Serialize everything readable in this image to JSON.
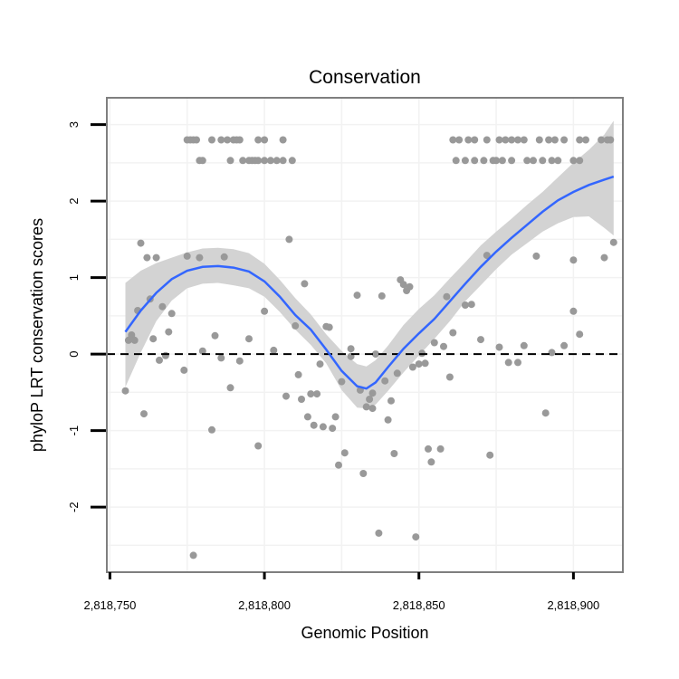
{
  "chart_data": {
    "type": "scatter",
    "title": "Conservation",
    "xlabel": "Genomic Position",
    "ylabel": "phyloP LRT conservation scores",
    "xlim": [
      2818749,
      2818916
    ],
    "ylim": [
      -2.85,
      3.35
    ],
    "x_ticks": [
      {
        "value": 2818750,
        "label": "2,818,750"
      },
      {
        "value": 2818800,
        "label": "2,818,800"
      },
      {
        "value": 2818850,
        "label": "2,818,850"
      },
      {
        "value": 2818900,
        "label": "2,818,900"
      }
    ],
    "y_ticks": [
      {
        "value": -2,
        "label": "-2"
      },
      {
        "value": -1,
        "label": "-1"
      },
      {
        "value": 0,
        "label": "0"
      },
      {
        "value": 1,
        "label": "1"
      },
      {
        "value": 2,
        "label": "2"
      },
      {
        "value": 3,
        "label": "3"
      }
    ],
    "reference_line": {
      "y": 0,
      "style": "dashed"
    },
    "series": [
      {
        "name": "scores",
        "kind": "points",
        "color": "#999999",
        "points": [
          [
            2818775,
            2.8
          ],
          [
            2818776,
            2.8
          ],
          [
            2818777,
            2.8
          ],
          [
            2818778,
            2.8
          ],
          [
            2818783,
            2.8
          ],
          [
            2818786,
            2.8
          ],
          [
            2818788,
            2.8
          ],
          [
            2818790,
            2.8
          ],
          [
            2818791,
            2.8
          ],
          [
            2818792,
            2.8
          ],
          [
            2818798,
            2.8
          ],
          [
            2818800,
            2.8
          ],
          [
            2818806,
            2.8
          ],
          [
            2818875,
            2.53
          ],
          [
            2818779,
            2.53
          ],
          [
            2818780,
            2.53
          ],
          [
            2818789,
            2.53
          ],
          [
            2818793,
            2.53
          ],
          [
            2818795,
            2.53
          ],
          [
            2818796,
            2.53
          ],
          [
            2818797,
            2.53
          ],
          [
            2818798,
            2.53
          ],
          [
            2818800,
            2.53
          ],
          [
            2818802,
            2.53
          ],
          [
            2818804,
            2.53
          ],
          [
            2818806,
            2.53
          ],
          [
            2818809,
            2.53
          ],
          [
            2818861,
            2.8
          ],
          [
            2818863,
            2.8
          ],
          [
            2818866,
            2.8
          ],
          [
            2818868,
            2.8
          ],
          [
            2818872,
            2.8
          ],
          [
            2818876,
            2.8
          ],
          [
            2818878,
            2.8
          ],
          [
            2818880,
            2.8
          ],
          [
            2818882,
            2.8
          ],
          [
            2818884,
            2.8
          ],
          [
            2818889,
            2.8
          ],
          [
            2818892,
            2.8
          ],
          [
            2818894,
            2.8
          ],
          [
            2818897,
            2.8
          ],
          [
            2818902,
            2.8
          ],
          [
            2818904,
            2.8
          ],
          [
            2818909,
            2.8
          ],
          [
            2818911,
            2.8
          ],
          [
            2818912,
            2.8
          ],
          [
            2818862,
            2.53
          ],
          [
            2818865,
            2.53
          ],
          [
            2818868,
            2.53
          ],
          [
            2818871,
            2.53
          ],
          [
            2818874,
            2.53
          ],
          [
            2818877,
            2.53
          ],
          [
            2818880,
            2.53
          ],
          [
            2818885,
            2.53
          ],
          [
            2818887,
            2.53
          ],
          [
            2818890,
            2.53
          ],
          [
            2818893,
            2.53
          ],
          [
            2818895,
            2.53
          ],
          [
            2818900,
            2.53
          ],
          [
            2818902,
            2.53
          ],
          [
            2818755,
            -0.48
          ],
          [
            2818756,
            0.18
          ],
          [
            2818757,
            0.22
          ],
          [
            2818757,
            0.25
          ],
          [
            2818758,
            0.18
          ],
          [
            2818759,
            0.57
          ],
          [
            2818760,
            1.45
          ],
          [
            2818761,
            -0.78
          ],
          [
            2818762,
            1.26
          ],
          [
            2818763,
            0.72
          ],
          [
            2818764,
            0.2
          ],
          [
            2818765,
            1.26
          ],
          [
            2818766,
            -0.08
          ],
          [
            2818767,
            0.62
          ],
          [
            2818768,
            -0.02
          ],
          [
            2818769,
            0.29
          ],
          [
            2818770,
            0.53
          ],
          [
            2818774,
            -0.21
          ],
          [
            2818775,
            1.28
          ],
          [
            2818777,
            -2.63
          ],
          [
            2818779,
            1.26
          ],
          [
            2818780,
            0.04
          ],
          [
            2818783,
            -0.99
          ],
          [
            2818784,
            0.24
          ],
          [
            2818786,
            -0.05
          ],
          [
            2818787,
            1.27
          ],
          [
            2818789,
            -0.44
          ],
          [
            2818792,
            -0.09
          ],
          [
            2818795,
            0.2
          ],
          [
            2818798,
            -1.2
          ],
          [
            2818800,
            0.56
          ],
          [
            2818803,
            0.05
          ],
          [
            2818807,
            -0.55
          ],
          [
            2818808,
            1.5
          ],
          [
            2818810,
            0.37
          ],
          [
            2818811,
            -0.27
          ],
          [
            2818812,
            -0.59
          ],
          [
            2818813,
            0.92
          ],
          [
            2818814,
            -0.82
          ],
          [
            2818815,
            -0.52
          ],
          [
            2818816,
            -0.93
          ],
          [
            2818817,
            -0.52
          ],
          [
            2818818,
            -0.13
          ],
          [
            2818819,
            -0.95
          ],
          [
            2818820,
            0.36
          ],
          [
            2818821,
            0.35
          ],
          [
            2818822,
            -0.97
          ],
          [
            2818823,
            -0.82
          ],
          [
            2818824,
            -1.45
          ],
          [
            2818825,
            -0.36
          ],
          [
            2818826,
            -1.29
          ],
          [
            2818828,
            -0.03
          ],
          [
            2818828,
            0.07
          ],
          [
            2818830,
            0.77
          ],
          [
            2818831,
            -0.47
          ],
          [
            2818832,
            -1.56
          ],
          [
            2818833,
            -0.69
          ],
          [
            2818834,
            -0.59
          ],
          [
            2818835,
            -0.51
          ],
          [
            2818835,
            -0.71
          ],
          [
            2818836,
            0.0
          ],
          [
            2818837,
            -2.34
          ],
          [
            2818838,
            0.76
          ],
          [
            2818839,
            -0.35
          ],
          [
            2818840,
            -0.86
          ],
          [
            2818841,
            -0.61
          ],
          [
            2818842,
            -1.3
          ],
          [
            2818843,
            -0.25
          ],
          [
            2818844,
            0.97
          ],
          [
            2818845,
            0.91
          ],
          [
            2818846,
            0.83
          ],
          [
            2818847,
            0.88
          ],
          [
            2818848,
            -0.17
          ],
          [
            2818849,
            -2.39
          ],
          [
            2818850,
            -0.13
          ],
          [
            2818851,
            0.01
          ],
          [
            2818852,
            -0.12
          ],
          [
            2818853,
            -1.24
          ],
          [
            2818854,
            -1.41
          ],
          [
            2818855,
            0.15
          ],
          [
            2818857,
            -1.24
          ],
          [
            2818858,
            0.1
          ],
          [
            2818859,
            0.75
          ],
          [
            2818860,
            -0.3
          ],
          [
            2818861,
            0.28
          ],
          [
            2818865,
            0.64
          ],
          [
            2818867,
            0.65
          ],
          [
            2818870,
            0.19
          ],
          [
            2818872,
            1.29
          ],
          [
            2818873,
            -1.32
          ],
          [
            2818876,
            0.09
          ],
          [
            2818879,
            -0.11
          ],
          [
            2818882,
            -0.11
          ],
          [
            2818884,
            0.11
          ],
          [
            2818888,
            1.28
          ],
          [
            2818891,
            -0.77
          ],
          [
            2818893,
            0.02
          ],
          [
            2818897,
            0.11
          ],
          [
            2818900,
            0.56
          ],
          [
            2818900,
            1.23
          ],
          [
            2818902,
            0.26
          ],
          [
            2818910,
            1.26
          ],
          [
            2818913,
            1.46
          ]
        ]
      },
      {
        "name": "smooth fit",
        "kind": "line",
        "color": "#3366ff",
        "x": [
          2818755,
          2818760,
          2818765,
          2818770,
          2818775,
          2818780,
          2818785,
          2818790,
          2818795,
          2818800,
          2818805,
          2818810,
          2818815,
          2818820,
          2818825,
          2818830,
          2818833,
          2818836,
          2818840,
          2818845,
          2818850,
          2818855,
          2818860,
          2818865,
          2818870,
          2818875,
          2818880,
          2818885,
          2818890,
          2818895,
          2818900,
          2818905,
          2818910,
          2818913
        ],
        "y": [
          0.29,
          0.57,
          0.8,
          0.98,
          1.09,
          1.14,
          1.15,
          1.13,
          1.08,
          0.95,
          0.75,
          0.51,
          0.32,
          0.06,
          -0.22,
          -0.42,
          -0.45,
          -0.37,
          -0.17,
          0.07,
          0.27,
          0.46,
          0.69,
          0.92,
          1.14,
          1.34,
          1.52,
          1.69,
          1.86,
          2.01,
          2.12,
          2.21,
          2.28,
          2.32
        ]
      },
      {
        "name": "confidence band",
        "kind": "band",
        "color": "#d3d3d3",
        "x": [
          2818755,
          2818760,
          2818765,
          2818770,
          2818775,
          2818780,
          2818785,
          2818790,
          2818795,
          2818800,
          2818805,
          2818810,
          2818815,
          2818820,
          2818825,
          2818830,
          2818833,
          2818836,
          2818840,
          2818845,
          2818850,
          2818855,
          2818860,
          2818865,
          2818870,
          2818875,
          2818880,
          2818885,
          2818890,
          2818895,
          2818900,
          2818905,
          2818910,
          2818913
        ],
        "lower": [
          -0.43,
          0.02,
          0.43,
          0.7,
          0.86,
          0.92,
          0.93,
          0.9,
          0.86,
          0.75,
          0.55,
          0.32,
          0.12,
          -0.12,
          -0.47,
          -0.7,
          -0.71,
          -0.66,
          -0.48,
          -0.24,
          -0.02,
          0.2,
          0.43,
          0.69,
          0.9,
          1.11,
          1.3,
          1.45,
          1.6,
          1.71,
          1.79,
          1.8,
          1.65,
          1.55
        ],
        "upper": [
          0.93,
          1.09,
          1.19,
          1.26,
          1.33,
          1.38,
          1.39,
          1.37,
          1.32,
          1.18,
          0.97,
          0.73,
          0.52,
          0.26,
          0.04,
          -0.13,
          -0.16,
          -0.08,
          0.11,
          0.38,
          0.59,
          0.77,
          0.99,
          1.2,
          1.42,
          1.6,
          1.77,
          1.95,
          2.12,
          2.31,
          2.5,
          2.67,
          2.87,
          3.05
        ]
      }
    ]
  }
}
